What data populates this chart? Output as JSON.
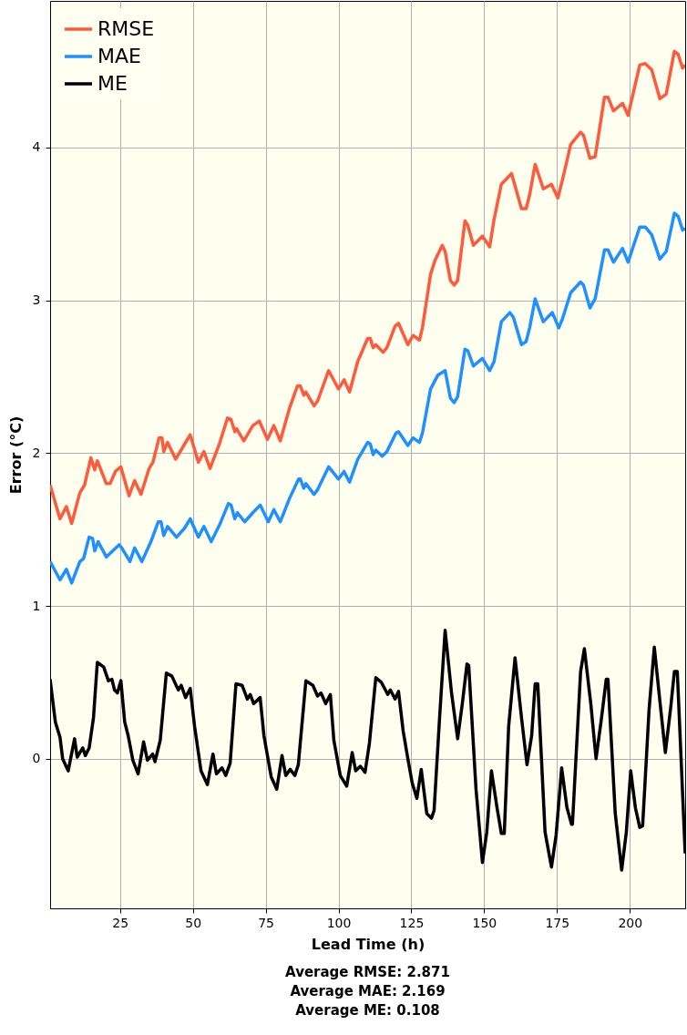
{
  "chart_data": {
    "type": "line",
    "xlabel": "Lead Time (h)",
    "ylabel": "Error  (°C)",
    "xlim": [
      1,
      219
    ],
    "xticks": [
      25,
      50,
      75,
      100,
      125,
      150,
      175,
      200
    ],
    "ylim": [
      -0.98,
      4.96
    ],
    "yticks": [
      0,
      1,
      2,
      3,
      4
    ],
    "grid": true,
    "legend": "top left",
    "marker": "none",
    "line_style": "solid",
    "annotations": [
      "Average RMSE: 2.871",
      "Average MAE: 2.169",
      "Average ME: 0.108"
    ],
    "series": [
      {
        "name": "RMSE",
        "color": "#ff5a3c",
        "x": [
          1,
          4.4,
          6.6,
          8.4,
          11.2,
          12.8,
          15,
          16.3,
          17.2,
          20.3,
          21.6,
          23.4,
          25.3,
          28.1,
          30,
          32.2,
          35,
          36.3,
          38.4,
          39.4,
          40,
          41.3,
          44.1,
          47.2,
          49.1,
          51.9,
          53.8,
          55.9,
          59.1,
          61.9,
          63.1,
          64.4,
          65,
          67.5,
          70.6,
          72.8,
          75.6,
          77.8,
          80,
          83.1,
          85.9,
          86.9,
          88.1,
          88.8,
          91.6,
          92.8,
          96.6,
          100,
          101.9,
          103.8,
          106.6,
          110,
          110.9,
          111.9,
          112.8,
          115.3,
          116.6,
          119.4,
          120.6,
          123.8,
          125.6,
          127.8,
          128.8,
          131.6,
          133.1,
          135.6,
          136.6,
          138.4,
          139.7,
          140.9,
          143.4,
          144.4,
          146.3,
          149.4,
          151.9,
          153.4,
          155.9,
          159.4,
          160,
          162.8,
          164.4,
          165.6,
          167.5,
          170.3,
          173.1,
          175.3,
          176.9,
          179.7,
          183.1,
          184.1,
          186.3,
          188.1,
          191.3,
          192.5,
          194.4,
          197.5,
          199.4,
          203.4,
          205.3,
          207.5,
          210.3,
          212.5,
          215.3,
          216.6,
          218.1,
          219
        ],
        "values": [
          1.79,
          1.57,
          1.65,
          1.54,
          1.74,
          1.79,
          1.97,
          1.89,
          1.95,
          1.8,
          1.8,
          1.88,
          1.91,
          1.72,
          1.82,
          1.73,
          1.9,
          1.94,
          2.1,
          2.1,
          2.01,
          2.07,
          1.96,
          2.06,
          2.12,
          1.94,
          2.01,
          1.9,
          2.06,
          2.23,
          2.22,
          2.14,
          2.16,
          2.08,
          2.18,
          2.21,
          2.09,
          2.18,
          2.08,
          2.29,
          2.44,
          2.44,
          2.38,
          2.4,
          2.31,
          2.34,
          2.54,
          2.42,
          2.48,
          2.4,
          2.6,
          2.75,
          2.75,
          2.69,
          2.71,
          2.66,
          2.69,
          2.83,
          2.85,
          2.71,
          2.77,
          2.74,
          2.82,
          3.17,
          3.26,
          3.36,
          3.32,
          3.13,
          3.1,
          3.13,
          3.52,
          3.49,
          3.36,
          3.42,
          3.35,
          3.53,
          3.76,
          3.83,
          3.79,
          3.6,
          3.6,
          3.69,
          3.89,
          3.73,
          3.76,
          3.67,
          3.79,
          4.02,
          4.1,
          4.08,
          3.93,
          3.94,
          4.33,
          4.33,
          4.24,
          4.29,
          4.21,
          4.54,
          4.55,
          4.51,
          4.32,
          4.35,
          4.63,
          4.61,
          4.52,
          4.54
        ]
      },
      {
        "name": "MAE",
        "color": "#1e90ff",
        "x": [
          1,
          4.4,
          6.6,
          8.4,
          11.2,
          12.5,
          14.4,
          15.6,
          16.3,
          17.5,
          20.3,
          24.7,
          25.6,
          28.4,
          30,
          32.5,
          35.6,
          38.1,
          39.1,
          40,
          41.3,
          44.4,
          47.2,
          49.1,
          51.9,
          53.8,
          56.3,
          59.4,
          62.2,
          63.1,
          64.4,
          65.3,
          67.8,
          70.6,
          73.1,
          75.9,
          77.8,
          80,
          83.1,
          86.3,
          86.9,
          88.1,
          88.8,
          91.6,
          92.8,
          96.6,
          100,
          101.9,
          103.8,
          106.6,
          110,
          110.9,
          111.9,
          112.8,
          115,
          116.6,
          119.7,
          120.6,
          123.8,
          125.6,
          127.8,
          128.8,
          131.6,
          134.1,
          136.6,
          138.4,
          139.7,
          140.9,
          143.4,
          144.4,
          146.3,
          149.4,
          151.9,
          153.4,
          155.9,
          158.8,
          160,
          162.8,
          164.4,
          165.6,
          167.5,
          170.3,
          173.4,
          175.6,
          176.9,
          179.7,
          183.1,
          184.1,
          186.3,
          188.1,
          191.3,
          192.5,
          194.4,
          197.5,
          199.4,
          203.4,
          205.3,
          207.5,
          210.3,
          212.5,
          215.3,
          216.6,
          218.1,
          219
        ],
        "values": [
          1.29,
          1.17,
          1.24,
          1.15,
          1.29,
          1.31,
          1.45,
          1.44,
          1.36,
          1.42,
          1.32,
          1.4,
          1.38,
          1.29,
          1.38,
          1.29,
          1.42,
          1.55,
          1.55,
          1.46,
          1.52,
          1.45,
          1.51,
          1.57,
          1.45,
          1.52,
          1.42,
          1.54,
          1.67,
          1.66,
          1.57,
          1.61,
          1.55,
          1.61,
          1.66,
          1.55,
          1.63,
          1.55,
          1.7,
          1.83,
          1.83,
          1.77,
          1.8,
          1.73,
          1.76,
          1.91,
          1.83,
          1.88,
          1.81,
          1.96,
          2.07,
          2.06,
          1.99,
          2.02,
          1.98,
          2.01,
          2.13,
          2.14,
          2.05,
          2.1,
          2.07,
          2.13,
          2.42,
          2.51,
          2.54,
          2.36,
          2.33,
          2.37,
          2.68,
          2.67,
          2.57,
          2.62,
          2.54,
          2.6,
          2.86,
          2.92,
          2.89,
          2.71,
          2.73,
          2.82,
          3.01,
          2.86,
          2.92,
          2.82,
          2.88,
          3.05,
          3.12,
          3.1,
          2.95,
          3.01,
          3.33,
          3.33,
          3.25,
          3.34,
          3.25,
          3.48,
          3.48,
          3.43,
          3.27,
          3.32,
          3.57,
          3.55,
          3.46,
          3.47
        ]
      },
      {
        "name": "ME",
        "color": "#000000",
        "x": [
          1,
          2.8,
          4.4,
          5.3,
          7.2,
          9.4,
          10.3,
          12.2,
          13.1,
          14.4,
          15.9,
          17.2,
          19.4,
          21,
          22.2,
          23.1,
          24.1,
          25.3,
          26.6,
          27.8,
          29.4,
          31.2,
          33.1,
          34.4,
          36.2,
          37,
          38.8,
          40.9,
          42.8,
          45,
          46,
          47.5,
          49.1,
          50.6,
          52.8,
          55,
          56.9,
          58.1,
          60,
          61.3,
          62.8,
          64.8,
          66.9,
          68.7,
          69.7,
          70.9,
          73.1,
          74.4,
          76.9,
          78.8,
          80.6,
          81.9,
          83.4,
          85,
          86.2,
          88.8,
          91.2,
          92.8,
          94,
          95.6,
          97.2,
          98.4,
          100.6,
          102.8,
          104.7,
          105.9,
          107.5,
          109.1,
          110.6,
          112.8,
          114.7,
          116.9,
          117.8,
          119.4,
          120.6,
          122.2,
          123.8,
          125.3,
          126.9,
          128.4,
          130.3,
          131.9,
          132.8,
          134.7,
          136.6,
          138.8,
          140.9,
          142.5,
          144.1,
          144.7,
          147.2,
          149.4,
          150.9,
          152.5,
          154.4,
          155.9,
          156.9,
          158.4,
          160.6,
          162.8,
          164.7,
          166.3,
          167.5,
          168.4,
          170.9,
          173.1,
          174.7,
          176.6,
          178.4,
          180,
          180.3,
          183.1,
          184.4,
          186.6,
          188.4,
          190.3,
          191.9,
          192.5,
          195,
          197.2,
          198.8,
          200.3,
          201.9,
          203.4,
          204.4,
          206.6,
          208.4,
          210.3,
          212.2,
          214,
          215.3,
          216.3,
          219
        ],
        "values": [
          0.52,
          0.24,
          0.14,
          0.0,
          -0.08,
          0.13,
          0.01,
          0.07,
          0.02,
          0.07,
          0.27,
          0.63,
          0.6,
          0.51,
          0.52,
          0.45,
          0.43,
          0.51,
          0.24,
          0.15,
          -0.01,
          -0.1,
          0.11,
          -0.01,
          0.03,
          -0.02,
          0.12,
          0.56,
          0.54,
          0.45,
          0.48,
          0.4,
          0.46,
          0.21,
          -0.08,
          -0.17,
          0.03,
          -0.1,
          -0.06,
          -0.11,
          -0.03,
          0.49,
          0.48,
          0.39,
          0.42,
          0.36,
          0.4,
          0.15,
          -0.12,
          -0.2,
          0.02,
          -0.11,
          -0.07,
          -0.11,
          -0.04,
          0.51,
          0.48,
          0.41,
          0.43,
          0.36,
          0.42,
          0.12,
          -0.11,
          -0.18,
          0.04,
          -0.08,
          -0.05,
          -0.09,
          0.1,
          0.53,
          0.5,
          0.42,
          0.45,
          0.39,
          0.44,
          0.18,
          0.0,
          -0.16,
          -0.26,
          -0.07,
          -0.36,
          -0.39,
          -0.34,
          0.27,
          0.84,
          0.43,
          0.13,
          0.36,
          0.62,
          0.61,
          -0.2,
          -0.68,
          -0.48,
          -0.08,
          -0.32,
          -0.49,
          -0.49,
          0.21,
          0.66,
          0.27,
          -0.04,
          0.15,
          0.49,
          0.49,
          -0.48,
          -0.71,
          -0.5,
          -0.06,
          -0.32,
          -0.43,
          -0.43,
          0.57,
          0.72,
          0.36,
          0.0,
          0.27,
          0.52,
          0.52,
          -0.36,
          -0.73,
          -0.48,
          -0.08,
          -0.32,
          -0.45,
          -0.44,
          0.32,
          0.73,
          0.38,
          0.04,
          0.33,
          0.57,
          0.57,
          -0.62
        ]
      }
    ]
  }
}
